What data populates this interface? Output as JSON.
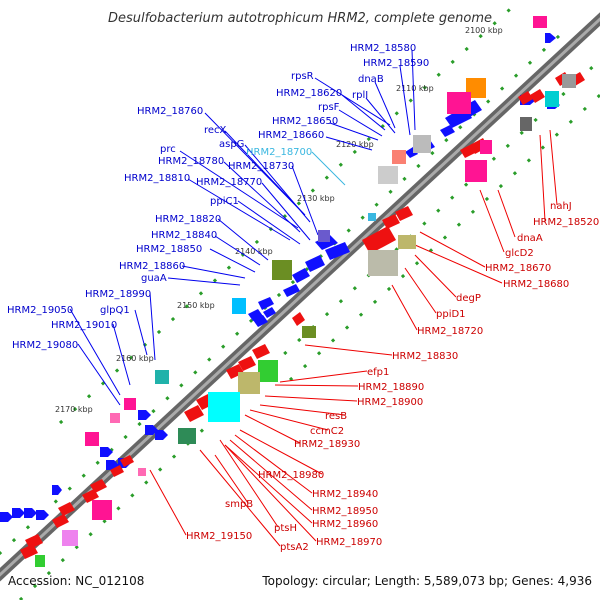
{
  "title": "Desulfobacterium autotrophicum HRM2, complete genome",
  "footer": {
    "accession": "Accession: NC_012108",
    "summary": "Topology: circular; Length: 5,589,073 bp; Genes: 4,936"
  },
  "kbp_ticks": [
    "2100 kbp",
    "2110 kbp",
    "2120 kbp",
    "2130 kbp",
    "2140 kbp",
    "2150 kbp",
    "2160 kbp",
    "2170 kbp"
  ],
  "blue_labels": [
    "HRM2_18580",
    "HRM2_18590",
    "rpsR",
    "dnaB",
    "HRM2_18620",
    "rplI",
    "rpsF",
    "HRM2_18650",
    "HRM2_18660",
    "HRM2_18760",
    "recX",
    "aspG",
    "prc",
    "HRM2_18780",
    "HRM2_18730",
    "HRM2_18810",
    "HRM2_18770",
    "ppiC1",
    "HRM2_18820",
    "HRM2_18840",
    "HRM2_18850",
    "HRM2_18860",
    "guaA",
    "HRM2_18990",
    "HRM2_19050",
    "glpQ1",
    "HRM2_19010",
    "HRM2_19080"
  ],
  "cyan_labels": [
    "HRM2_18700"
  ],
  "red_labels": [
    "nahJ",
    "HRM2_18520",
    "dnaA",
    "glcD2",
    "HRM2_18670",
    "HRM2_18680",
    "degP",
    "ppiD1",
    "HRM2_18720",
    "HRM2_18830",
    "efp1",
    "HRM2_18890",
    "HRM2_18900",
    "resB",
    "ccmC2",
    "HRM2_18930",
    "HRM2_18980",
    "HRM2_18940",
    "smpB",
    "HRM2_18950",
    "ptsH",
    "HRM2_18960",
    "HRM2_19150",
    "HRM2_18970",
    "ptsA2"
  ]
}
